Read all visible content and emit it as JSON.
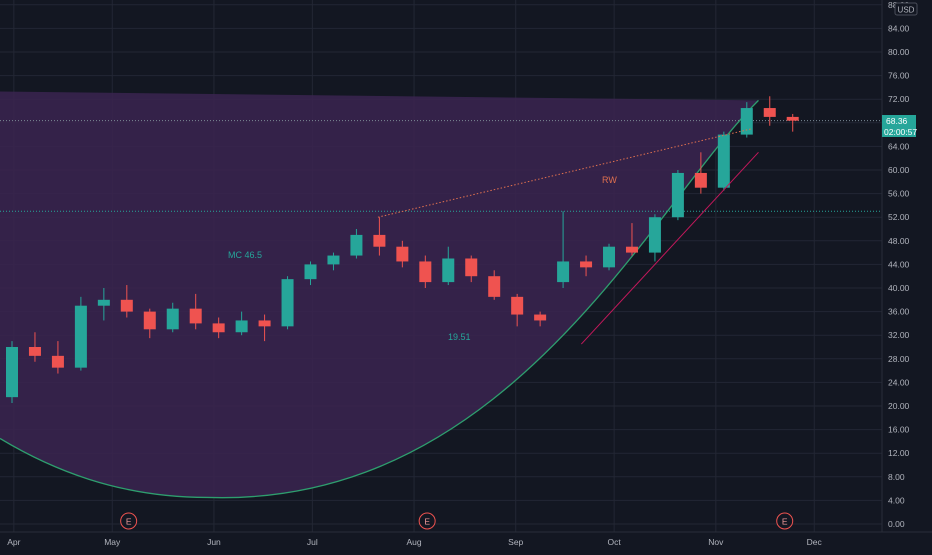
{
  "colors": {
    "background": "#131722",
    "grid": "#232734",
    "up": "#26a69a",
    "down": "#ef5350",
    "cup_fill": "#3b2450",
    "cup_line": "#2e9e6e",
    "axis_text": "#b2b5be",
    "annotation": "#26a69a",
    "rw_color": "#e0704f"
  },
  "price_axis": {
    "currency": "USD",
    "ticks": [
      "0.00",
      "4.00",
      "8.00",
      "12.00",
      "16.00",
      "20.00",
      "24.00",
      "28.00",
      "32.00",
      "36.00",
      "40.00",
      "44.00",
      "48.00",
      "52.00",
      "56.00",
      "60.00",
      "64.00",
      "68.00",
      "72.00",
      "76.00",
      "80.00",
      "84.00",
      "88.00"
    ],
    "last_price_label": "68.36",
    "countdown_label": "02:00:57"
  },
  "time_axis": {
    "labels": [
      "Apr",
      "May",
      "Jun",
      "Jul",
      "Aug",
      "Sep",
      "Oct",
      "Nov",
      "Dec"
    ]
  },
  "earnings_markers": [
    "E",
    "E",
    "E"
  ],
  "annotations": {
    "mc_label": "MC 46.5",
    "value_label": "19.51",
    "rw_label": "RW"
  },
  "chart_data": {
    "type": "candlestick",
    "title": "",
    "ylim": [
      0,
      88
    ],
    "x_range": [
      "2021-03-29",
      "2021-12-18"
    ],
    "y_scale": "linear",
    "grid": true,
    "last_price": 68.36,
    "reference_lines": [
      {
        "name": "",
        "value": 53.0,
        "style": "dotted"
      },
      {
        "name": "",
        "value": 68.36,
        "style": "dotted"
      }
    ],
    "cup_shape": {
      "rim_left": {
        "date": "2021-03-29",
        "price": 73.3
      },
      "rim_right": {
        "date": "2021-11-14",
        "price": 71.8
      },
      "bottom": {
        "date": "2021-05-30",
        "price": 4.5
      }
    },
    "rw_line": {
      "from": {
        "date": "2021-07-21",
        "price": 52.0
      },
      "to": {
        "date": "2021-11-12",
        "price": 67.0
      }
    },
    "earnings_dates": [
      "2021-05-06",
      "2021-08-05",
      "2021-11-22"
    ],
    "candles": [
      {
        "date": "2021-03-29",
        "open": 21.5,
        "high": 31.0,
        "low": 20.5,
        "close": 30.0
      },
      {
        "date": "2021-04-05",
        "open": 30.0,
        "high": 32.5,
        "low": 27.5,
        "close": 28.5
      },
      {
        "date": "2021-04-12",
        "open": 28.5,
        "high": 31.0,
        "low": 25.5,
        "close": 26.5
      },
      {
        "date": "2021-04-19",
        "open": 26.5,
        "high": 38.5,
        "low": 26.0,
        "close": 37.0
      },
      {
        "date": "2021-04-26",
        "open": 37.0,
        "high": 40.0,
        "low": 34.5,
        "close": 38.0
      },
      {
        "date": "2021-05-03",
        "open": 38.0,
        "high": 40.5,
        "low": 35.0,
        "close": 36.0
      },
      {
        "date": "2021-05-10",
        "open": 36.0,
        "high": 36.5,
        "low": 31.5,
        "close": 33.0
      },
      {
        "date": "2021-05-17",
        "open": 33.0,
        "high": 37.5,
        "low": 32.5,
        "close": 36.5
      },
      {
        "date": "2021-05-24",
        "open": 36.5,
        "high": 39.0,
        "low": 33.0,
        "close": 34.0
      },
      {
        "date": "2021-05-31",
        "open": 34.0,
        "high": 35.0,
        "low": 31.5,
        "close": 32.5
      },
      {
        "date": "2021-06-07",
        "open": 32.5,
        "high": 36.0,
        "low": 32.0,
        "close": 34.5
      },
      {
        "date": "2021-06-14",
        "open": 34.5,
        "high": 35.5,
        "low": 31.0,
        "close": 33.5
      },
      {
        "date": "2021-06-21",
        "open": 33.5,
        "high": 42.0,
        "low": 33.0,
        "close": 41.5
      },
      {
        "date": "2021-06-28",
        "open": 41.5,
        "high": 44.5,
        "low": 40.5,
        "close": 44.0
      },
      {
        "date": "2021-07-05",
        "open": 44.0,
        "high": 46.0,
        "low": 43.0,
        "close": 45.5
      },
      {
        "date": "2021-07-12",
        "open": 45.5,
        "high": 50.0,
        "low": 45.0,
        "close": 49.0
      },
      {
        "date": "2021-07-19",
        "open": 49.0,
        "high": 52.0,
        "low": 45.5,
        "close": 47.0
      },
      {
        "date": "2021-07-26",
        "open": 47.0,
        "high": 48.0,
        "low": 43.5,
        "close": 44.5
      },
      {
        "date": "2021-08-02",
        "open": 44.5,
        "high": 45.5,
        "low": 40.0,
        "close": 41.0
      },
      {
        "date": "2021-08-09",
        "open": 41.0,
        "high": 47.0,
        "low": 40.5,
        "close": 45.0
      },
      {
        "date": "2021-08-16",
        "open": 45.0,
        "high": 45.5,
        "low": 41.0,
        "close": 42.0
      },
      {
        "date": "2021-08-23",
        "open": 42.0,
        "high": 43.0,
        "low": 38.0,
        "close": 38.5
      },
      {
        "date": "2021-08-30",
        "open": 38.5,
        "high": 39.0,
        "low": 33.5,
        "close": 35.5
      },
      {
        "date": "2021-09-06",
        "open": 35.5,
        "high": 36.0,
        "low": 33.5,
        "close": 34.5
      },
      {
        "date": "2021-09-13",
        "open": 41.0,
        "high": 53.0,
        "low": 40.0,
        "close": 44.5
      },
      {
        "date": "2021-09-20",
        "open": 44.5,
        "high": 45.5,
        "low": 42.0,
        "close": 43.5
      },
      {
        "date": "2021-09-27",
        "open": 43.5,
        "high": 47.5,
        "low": 43.0,
        "close": 47.0
      },
      {
        "date": "2021-10-04",
        "open": 47.0,
        "high": 51.0,
        "low": 45.5,
        "close": 46.0
      },
      {
        "date": "2021-10-11",
        "open": 46.0,
        "high": 52.5,
        "low": 44.5,
        "close": 52.0
      },
      {
        "date": "2021-10-18",
        "open": 52.0,
        "high": 60.0,
        "low": 51.5,
        "close": 59.5
      },
      {
        "date": "2021-10-25",
        "open": 59.5,
        "high": 63.0,
        "low": 56.0,
        "close": 57.0
      },
      {
        "date": "2021-11-01",
        "open": 57.0,
        "high": 66.5,
        "low": 56.5,
        "close": 66.0
      },
      {
        "date": "2021-11-08",
        "open": 66.0,
        "high": 71.5,
        "low": 65.5,
        "close": 70.5
      },
      {
        "date": "2021-11-15",
        "open": 70.5,
        "high": 72.5,
        "low": 67.5,
        "close": 69.0
      },
      {
        "date": "2021-11-22",
        "open": 69.0,
        "high": 69.5,
        "low": 66.5,
        "close": 68.36
      }
    ]
  }
}
